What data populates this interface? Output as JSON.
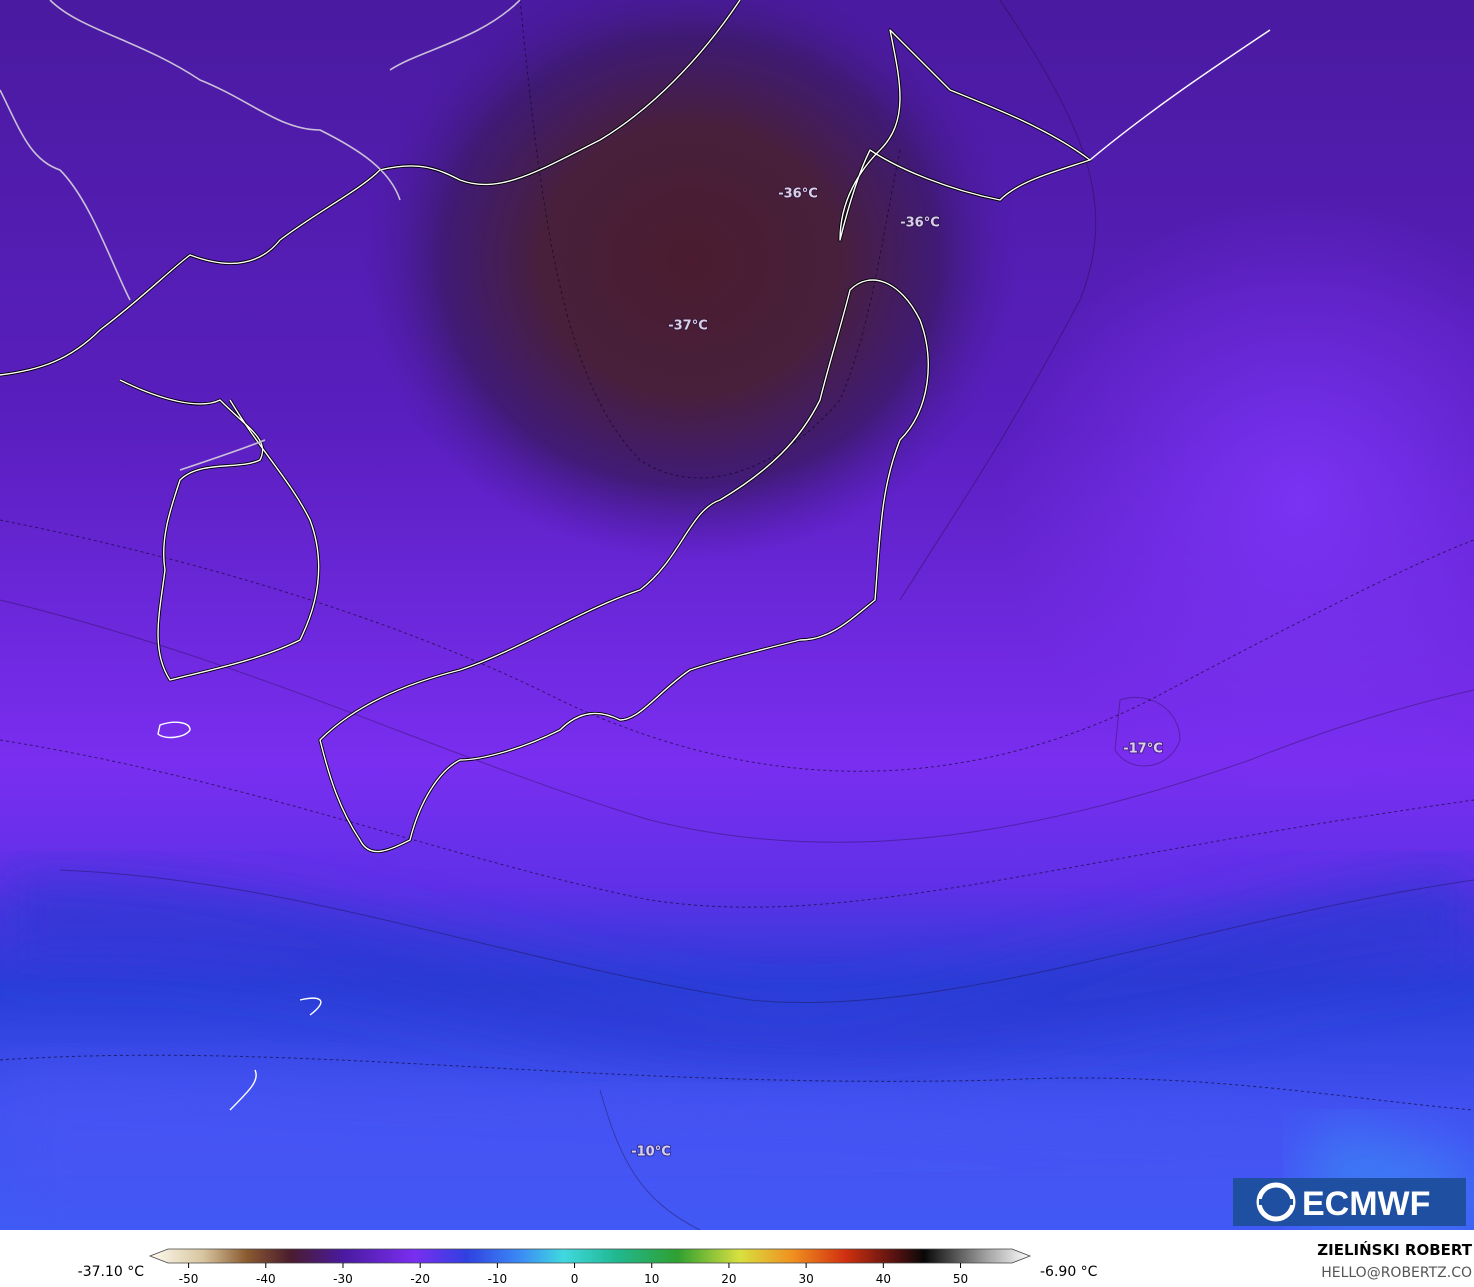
{
  "map": {
    "contour_labels": [
      "-36°C",
      "-36°C",
      "-37°C",
      "-17°C",
      "-10°C"
    ],
    "logo": "ECMWF"
  },
  "legend": {
    "min_label": "-37.10 °C",
    "max_label": "-6.90 °C",
    "lim": [
      -55,
      59
    ],
    "ticks": [
      -50,
      -40,
      -30,
      -20,
      -10,
      0,
      10,
      20,
      30,
      40,
      50
    ]
  },
  "credit": {
    "author": "ZIELIŃSKI ROBERT",
    "contact": "HELLO@ROBERTZ.CO"
  }
}
